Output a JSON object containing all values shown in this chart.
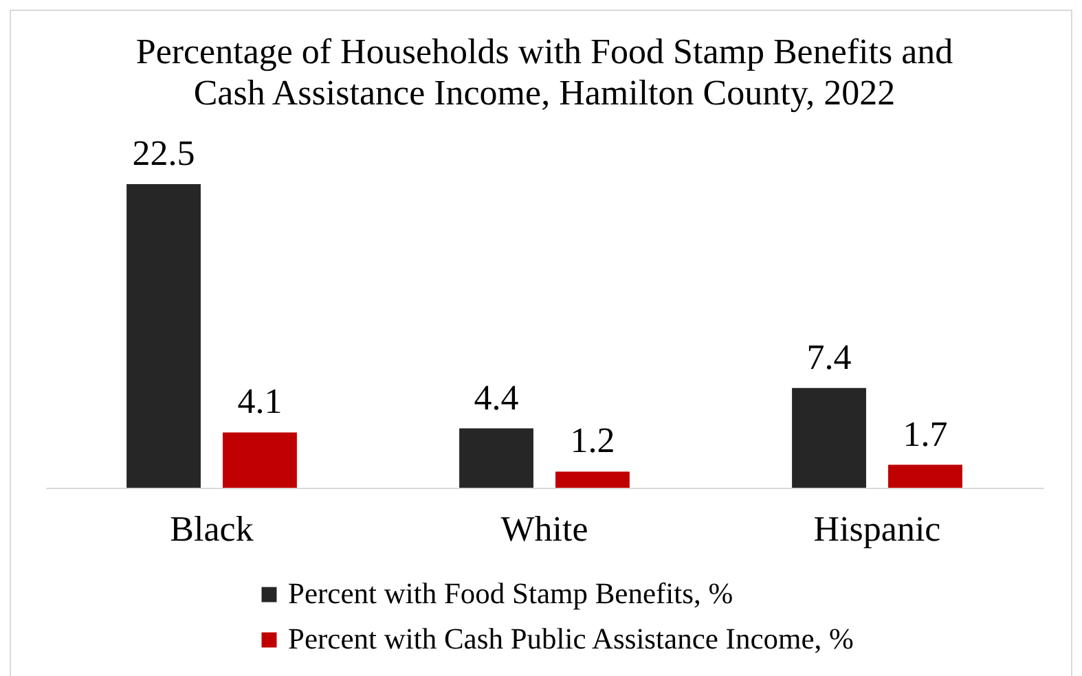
{
  "chart_data": {
    "type": "bar",
    "title": "Percentage of Households with Food Stamp Benefits and\nCash Assistance Income, Hamilton County, 2022",
    "categories": [
      "Black",
      "White",
      "Hispanic"
    ],
    "series": [
      {
        "name": "Percent with Food Stamp Benefits, %",
        "color": "#262626",
        "values": [
          22.5,
          4.4,
          7.4
        ]
      },
      {
        "name": "Percent with Cash Public Assistance Income, %",
        "color": "#c00000",
        "values": [
          4.1,
          1.2,
          1.7
        ]
      }
    ],
    "data_labels": true,
    "legend": "bottom"
  }
}
